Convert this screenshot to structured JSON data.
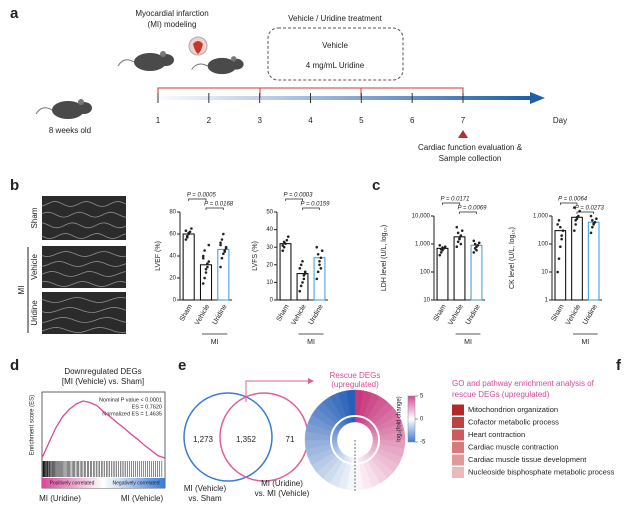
{
  "panel_a": {
    "label": "a",
    "modeling": [
      "Myocardial infarction",
      "(MI) modeling"
    ],
    "treatment": "Vehicle / Uridine treatment",
    "groups": [
      "Vehicle",
      "4 mg/mL Uridine"
    ],
    "age": "8 weeks old",
    "days": [
      1,
      2,
      3,
      4,
      5,
      6,
      7
    ],
    "day_label": "Day",
    "evaluation": [
      "Cardiac function evaluation &",
      "Sample collection"
    ]
  },
  "panel_b": {
    "label": "b",
    "images": [
      "Sham",
      "Vehicle",
      "Uridine"
    ],
    "group": "MI"
  },
  "panel_c": {
    "label": "c"
  },
  "panel_d": {
    "label": "d"
  },
  "panel_e": {
    "label": "e",
    "venn": [
      "1,273",
      "1,352",
      "71"
    ],
    "left_set": [
      "MI (Vehicle)",
      "vs. Sham"
    ],
    "right_set": [
      "MI (Uridine)",
      "vs. MI (Vehicle)"
    ],
    "donut_title": [
      "Rescue DEGs",
      "(upregulated)"
    ],
    "colorbar": {
      "label": "log₂(fold change)",
      "ticks": [
        5,
        0,
        -5
      ],
      "lim": [
        -5,
        5
      ]
    }
  },
  "panel_f": {
    "label": "f",
    "title": [
      "GO and pathway enrichment analysis of",
      "rescue DEGs (upregulated)"
    ],
    "items": [
      "Mitochondrion organization",
      "Cofactor metabolic process",
      "Heart contraction",
      "Cardiac muscle contraction",
      "Cardiac muscle tissue development",
      "Nucleoside bisphosphate metabolic process"
    ],
    "colors": [
      "#b02a2a",
      "#bf4242",
      "#cb5c5c",
      "#d67a7a",
      "#e09a9a",
      "#eab9b9"
    ]
  },
  "chart_data": [
    {
      "type": "bar",
      "ylabel": "LVEF (%)",
      "categories": [
        "Sham",
        "Vehicle",
        "Uridine"
      ],
      "values": [
        60,
        32,
        46
      ],
      "colors": [
        "#000000",
        "#000000",
        "#3a9ad9"
      ],
      "points": [
        [
          55,
          58,
          60,
          62,
          65,
          63,
          57,
          61
        ],
        [
          15,
          20,
          25,
          30,
          35,
          40,
          45,
          28,
          33,
          50,
          38
        ],
        [
          30,
          38,
          42,
          45,
          48,
          52,
          55,
          60,
          44,
          47,
          50
        ]
      ],
      "ylim": [
        0,
        80
      ],
      "yticks": [
        0,
        20,
        40,
        60,
        80
      ],
      "log": false,
      "p_values": [
        "P = 0.0005",
        "P = 0.0168"
      ],
      "group_label": "MI"
    },
    {
      "type": "bar",
      "ylabel": "LVFS (%)",
      "categories": [
        "Sham",
        "Vehicle",
        "Uridine"
      ],
      "values": [
        32,
        15,
        24
      ],
      "colors": [
        "#000000",
        "#000000",
        "#3a9ad9"
      ],
      "points": [
        [
          28,
          30,
          32,
          34,
          36,
          31,
          33
        ],
        [
          5,
          8,
          10,
          12,
          15,
          18,
          20,
          22,
          14,
          16
        ],
        [
          12,
          16,
          20,
          24,
          28,
          30,
          26,
          22,
          18
        ]
      ],
      "ylim": [
        0,
        50
      ],
      "yticks": [
        0,
        10,
        20,
        30,
        40,
        50
      ],
      "log": false,
      "p_values": [
        "P = 0.0003",
        "P = 0.0159"
      ],
      "group_label": "MI"
    },
    {
      "type": "bar",
      "ylabel": "LDH level (U/L, log₁₀)",
      "categories": [
        "Sham",
        "Vehicle",
        "Uridine"
      ],
      "values": [
        700,
        1800,
        900
      ],
      "colors": [
        "#000000",
        "#000000",
        "#3a9ad9"
      ],
      "points": [
        [
          400,
          500,
          600,
          700,
          800,
          900,
          650,
          750
        ],
        [
          800,
          1200,
          1600,
          2000,
          3000,
          4000,
          2500,
          1500,
          1000
        ],
        [
          500,
          700,
          800,
          900,
          1100,
          1300,
          1000,
          600
        ]
      ],
      "ylim": [
        10,
        10000
      ],
      "yticks": [
        10,
        100,
        {
          "value": 1000,
          "label": "1,000"
        },
        {
          "value": 10000,
          "label": "10,000"
        }
      ],
      "log": true,
      "p_values": [
        "P = 0.0171",
        "P = 0.0069"
      ],
      "group_label": "MI"
    },
    {
      "type": "bar",
      "ylabel": "CK level (U/L, log₁₀)",
      "categories": [
        "Sham",
        "Vehicle",
        "Uridine"
      ],
      "values": [
        300,
        900,
        600
      ],
      "colors": [
        "#000000",
        "#000000",
        "#3a9ad9"
      ],
      "points": [
        [
          10,
          30,
          80,
          150,
          300,
          500,
          700,
          400,
          200
        ],
        [
          300,
          500,
          800,
          1000,
          1500,
          2000,
          700,
          900
        ],
        [
          250,
          400,
          500,
          600,
          800,
          1000,
          700,
          550
        ]
      ],
      "ylim": [
        1,
        1000
      ],
      "yticks": [
        1,
        10,
        100,
        {
          "value": 1000,
          "label": "1,000"
        }
      ],
      "log": true,
      "p_values": [
        "P = 0.0064",
        "P = 0.0273"
      ],
      "group_label": "MI"
    },
    {
      "type": "line",
      "title": "Downregulated DEGs",
      "subtitle": "[MI (Vehicle) vs. Sham]",
      "ylabel": "Enrichment score (ES)",
      "annotations": [
        "Nominal P value < 0.0001",
        "ES = 0.7620",
        "Normalized ES = 1.4635"
      ],
      "values": [
        0,
        0.2,
        0.4,
        0.55,
        0.65,
        0.72,
        0.76,
        0.74,
        0.7,
        0.62,
        0.55,
        0.47,
        0.4,
        0.32,
        0.25,
        0.17,
        0.1,
        0.03,
        0
      ],
      "color": "#d9489a",
      "ylim": [
        0,
        0.8
      ],
      "phenotypes": [
        "Positively correlated",
        "Negatively correlated"
      ],
      "groups": [
        "MI (Uridine)",
        "MI (Vehicle)"
      ]
    }
  ]
}
